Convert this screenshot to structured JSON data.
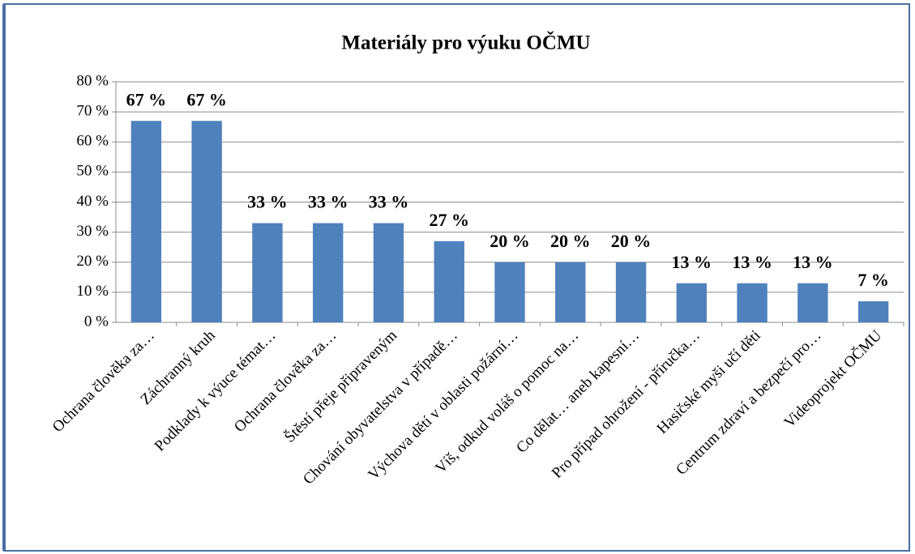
{
  "chart_data": {
    "type": "bar",
    "title": "Materiály pro výuku OČMU",
    "categories": [
      "Ochrana člověka za…",
      "Záchranný kruh",
      "Podklady k výuce témat…",
      "Ochrana člověka za…",
      "Štěstí přeje připraveným",
      "Chování obyvatelstva v případě…",
      "Výchova dětí v oblasti požární…",
      "Víš, odkud voláš o pomoc na…",
      "Co dělat… aneb kapesní…",
      "Pro případ ohrožení - příručka…",
      "Hasičské myši učí děti",
      "Centrum zdraví a bezpečí pro…",
      "Videoprojekt OČMU"
    ],
    "values": [
      67,
      67,
      33,
      33,
      33,
      27,
      20,
      20,
      20,
      13,
      13,
      13,
      7
    ],
    "value_labels": [
      "67 %",
      "67 %",
      "33 %",
      "33 %",
      "33 %",
      "27 %",
      "20 %",
      "20 %",
      "20 %",
      "13 %",
      "13 %",
      "13 %",
      "7 %"
    ],
    "color": "#4f81bd",
    "ylim": [
      0,
      80
    ],
    "yticks": [
      {
        "value": 0,
        "label": "0 %"
      },
      {
        "value": 10,
        "label": "10 %"
      },
      {
        "value": 20,
        "label": "20 %"
      },
      {
        "value": 30,
        "label": "30 %"
      },
      {
        "value": 40,
        "label": "40 %"
      },
      {
        "value": 50,
        "label": "50 %"
      },
      {
        "value": 60,
        "label": "60 %"
      },
      {
        "value": 70,
        "label": "70 %"
      },
      {
        "value": 80,
        "label": "80 %"
      }
    ],
    "grid": true
  }
}
